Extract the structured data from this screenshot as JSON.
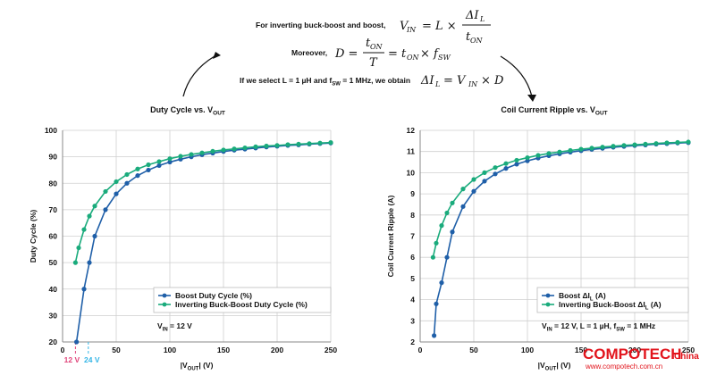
{
  "equations": {
    "line1_label": "For inverting buck-boost and boost,",
    "line2_label": "Moreover,",
    "line3_label_a": "If we select L = 1 µH and f",
    "line3_label_sub": "SW",
    "line3_label_b": " = 1 MHz, we obtain"
  },
  "colors": {
    "boost": "#1f5fa8",
    "inverting": "#1aab7c",
    "marker12": "#e0447a",
    "marker24": "#36b6e6",
    "brand": "#e2141c"
  },
  "watermark": {
    "brand": "COMPOTECH",
    "suffix": "China",
    "url": "www.compotech.com.cn"
  },
  "chart_data": [
    {
      "type": "line",
      "title": "Duty Cycle vs. V",
      "title_sub": "OUT",
      "ylabel": "Duty Cycle (%)",
      "xlabel_pre": "|V",
      "xlabel_sub": "OUT",
      "xlabel_post": "| (V)",
      "xlim": [
        0,
        250
      ],
      "ylim": [
        20,
        100
      ],
      "xticks": [
        0,
        50,
        100,
        150,
        200,
        250
      ],
      "yticks": [
        20,
        30,
        40,
        50,
        60,
        70,
        80,
        90,
        100
      ],
      "grid": true,
      "legend_position": "bottom-right",
      "annotation": "V",
      "annotation_sub": "IN",
      "annotation_post": " = 12 V",
      "vmarkers": [
        {
          "x": 12,
          "label": "12 V",
          "color_key": "marker12"
        },
        {
          "x": 24,
          "label": "24 V",
          "color_key": "marker24"
        }
      ],
      "series": [
        {
          "name": "Boost Duty Cycle (%)",
          "color_key": "boost",
          "x": [
            13,
            20,
            25,
            30,
            40,
            50,
            60,
            70,
            80,
            90,
            100,
            110,
            120,
            130,
            140,
            150,
            160,
            170,
            180,
            190,
            200,
            210,
            220,
            230,
            240,
            250
          ],
          "y": [
            20,
            40,
            50,
            60,
            70,
            76,
            80,
            82.9,
            85,
            86.7,
            88,
            89.1,
            90,
            90.8,
            91.4,
            92,
            92.5,
            92.9,
            93.3,
            93.7,
            94,
            94.3,
            94.5,
            94.8,
            95,
            95.2
          ]
        },
        {
          "name": "Inverting Buck-Boost Duty Cycle (%)",
          "color_key": "inverting",
          "x": [
            12,
            15,
            20,
            25,
            30,
            40,
            50,
            60,
            70,
            80,
            90,
            100,
            110,
            120,
            130,
            140,
            150,
            160,
            170,
            180,
            190,
            200,
            210,
            220,
            230,
            240,
            250
          ],
          "y": [
            50,
            55.6,
            62.5,
            67.6,
            71.4,
            76.9,
            80.6,
            83.3,
            85.4,
            87,
            88.2,
            89.3,
            90.2,
            90.9,
            91.5,
            92.1,
            92.6,
            93,
            93.4,
            93.8,
            94.1,
            94.3,
            94.6,
            94.8,
            95,
            95.2,
            95.4
          ]
        }
      ]
    },
    {
      "type": "line",
      "title": "Coil Current Ripple vs. V",
      "title_sub": "OUT",
      "ylabel": "Coil Current Ripple (A)",
      "xlabel_pre": "|V",
      "xlabel_sub": "OUT",
      "xlabel_post": "| (V)",
      "xlim": [
        0,
        250
      ],
      "ylim": [
        2,
        12
      ],
      "xticks": [
        0,
        50,
        100,
        150,
        200,
        250
      ],
      "yticks": [
        2,
        3,
        4,
        5,
        6,
        7,
        8,
        9,
        10,
        11,
        12
      ],
      "grid": true,
      "legend_position": "bottom-right",
      "annotation": "V",
      "annotation_sub": "IN",
      "annotation_post": " = 12 V, L = 1 µH, f",
      "annotation_sub2": "SW",
      "annotation_post2": " = 1 MHz",
      "vmarkers": [],
      "series": [
        {
          "name": "Boost ΔI",
          "name_sub": "L",
          "name_post": " (A)",
          "color_key": "boost",
          "x": [
            13,
            15,
            20,
            25,
            30,
            40,
            50,
            60,
            70,
            80,
            90,
            100,
            110,
            120,
            130,
            140,
            150,
            160,
            170,
            180,
            190,
            200,
            210,
            220,
            230,
            240,
            250
          ],
          "y": [
            2.3,
            3.8,
            4.8,
            6,
            7.2,
            8.4,
            9.12,
            9.6,
            9.94,
            10.2,
            10.4,
            10.56,
            10.69,
            10.8,
            10.89,
            10.97,
            11.04,
            11.1,
            11.15,
            11.2,
            11.24,
            11.28,
            11.31,
            11.35,
            11.37,
            11.4,
            11.42
          ]
        },
        {
          "name": "Inverting Buck-Boost ΔI",
          "name_sub": "L",
          "name_post": " (A)",
          "color_key": "inverting",
          "x": [
            12,
            15,
            20,
            25,
            30,
            40,
            50,
            60,
            70,
            80,
            90,
            100,
            110,
            120,
            130,
            140,
            150,
            160,
            170,
            180,
            190,
            200,
            210,
            220,
            230,
            240,
            250
          ],
          "y": [
            6,
            6.67,
            7.5,
            8.1,
            8.57,
            9.23,
            9.68,
            10,
            10.24,
            10.43,
            10.59,
            10.71,
            10.82,
            10.91,
            10.98,
            11.05,
            11.11,
            11.16,
            11.21,
            11.25,
            11.29,
            11.32,
            11.35,
            11.38,
            11.41,
            11.43,
            11.45
          ]
        }
      ]
    }
  ]
}
